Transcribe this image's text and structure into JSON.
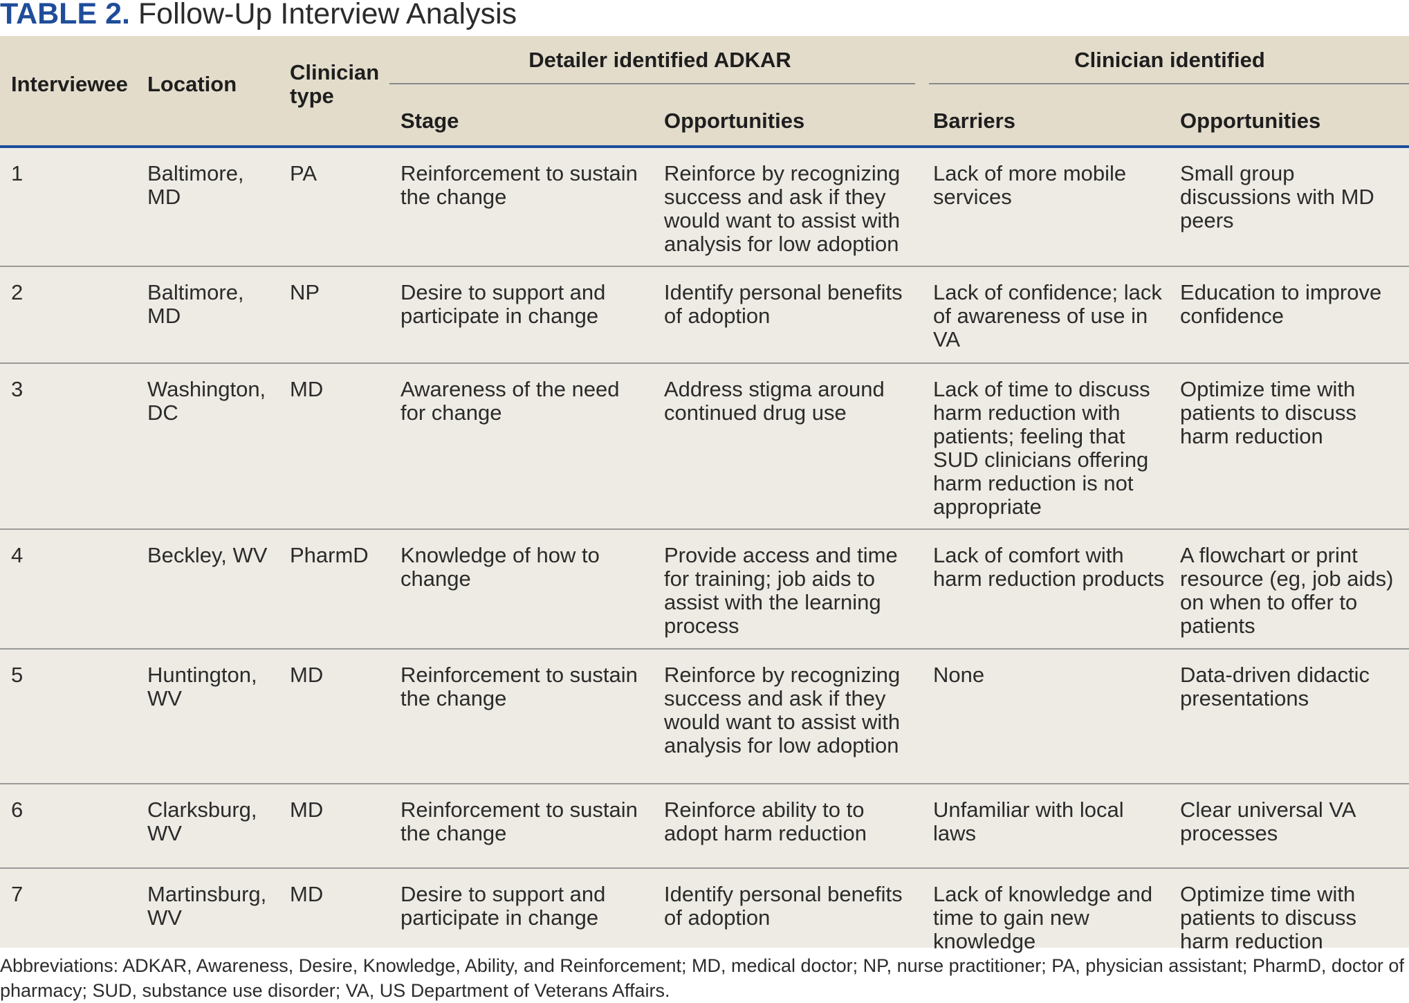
{
  "caption": {
    "label": "TABLE 2.",
    "title": "Follow-Up Interview Analysis"
  },
  "table": {
    "group_headers": {
      "detailer": "Detailer identified ADKAR",
      "clinician": "Clinician identified"
    },
    "columns": {
      "interviewee": "Interviewee",
      "location": "Location",
      "clinician_type": "Clinician type",
      "stage": "Stage",
      "detailer_opportunities": "Opportunities",
      "barriers": "Barriers",
      "clinician_opportunities": "Opportunities"
    },
    "rows": [
      {
        "interviewee": "1",
        "location": "Baltimore, MD",
        "clinician_type": "PA",
        "stage": "Reinforcement to sustain the change",
        "detailer_opportunities": "Reinforce by recognizing success and ask if they would want to assist with analysis for low adoption",
        "barriers": "Lack of more mobile services",
        "clinician_opportunities": "Small group discussions with MD peers"
      },
      {
        "interviewee": "2",
        "location": "Baltimore, MD",
        "clinician_type": "NP",
        "stage": "Desire to support and participate in change",
        "detailer_opportunities": "Identify personal benefits of adoption",
        "barriers": "Lack of confidence; lack of awareness of use in VA",
        "clinician_opportunities": "Education to improve confidence"
      },
      {
        "interviewee": "3",
        "location": "Washington, DC",
        "clinician_type": "MD",
        "stage": "Awareness of the need for change",
        "detailer_opportunities": "Address stigma around continued drug use",
        "barriers": "Lack of time to discuss harm reduction with patients; feeling that SUD clinicians offering harm reduction is not appropriate",
        "clinician_opportunities": "Optimize time with patients to discuss harm reduction"
      },
      {
        "interviewee": "4",
        "location": "Beckley, WV",
        "clinician_type": "PharmD",
        "stage": "Knowledge of how to change",
        "detailer_opportunities": "Provide access and time for training; job aids to assist with the learning process",
        "barriers": "Lack of comfort with harm reduction products",
        "clinician_opportunities": "A flowchart or print resource (eg, job aids) on when to offer to patients"
      },
      {
        "interviewee": "5",
        "location": "Huntington, WV",
        "clinician_type": "MD",
        "stage": "Reinforcement to sustain the change",
        "detailer_opportunities": "Reinforce by recognizing success and ask if they would want to assist with analysis for low adoption",
        "barriers": "None",
        "clinician_opportunities": "Data-driven didactic presentations"
      },
      {
        "interviewee": "6",
        "location": "Clarksburg, WV",
        "clinician_type": "MD",
        "stage": "Reinforcement to sustain the change",
        "detailer_opportunities": "Reinforce ability to to adopt harm reduction",
        "barriers": "Unfamiliar with local laws",
        "clinician_opportunities": "Clear universal VA processes"
      },
      {
        "interviewee": "7",
        "location": "Martinsburg, WV",
        "clinician_type": "MD",
        "stage": "Desire to support and participate in change",
        "detailer_opportunities": "Identify personal benefits of adoption",
        "barriers": "Lack of knowledge and time to gain new knowledge",
        "clinician_opportunities": "Optimize time with patients to discuss harm reduction"
      }
    ]
  },
  "footnote": "Abbreviations: ADKAR, Awareness, Desire, Knowledge, Ability, and Reinforcement; MD, medical doctor; NP, nurse practitioner; PA, physician assistant; PharmD, doctor of pharmacy; SUD, substance use disorder; VA, US Department of Veterans Affairs.",
  "colors": {
    "caption_label": "#1f4d9a",
    "header_bg": "#e3dccb",
    "body_bg": "#edebe3",
    "header_rule": "#1f4d9a"
  }
}
